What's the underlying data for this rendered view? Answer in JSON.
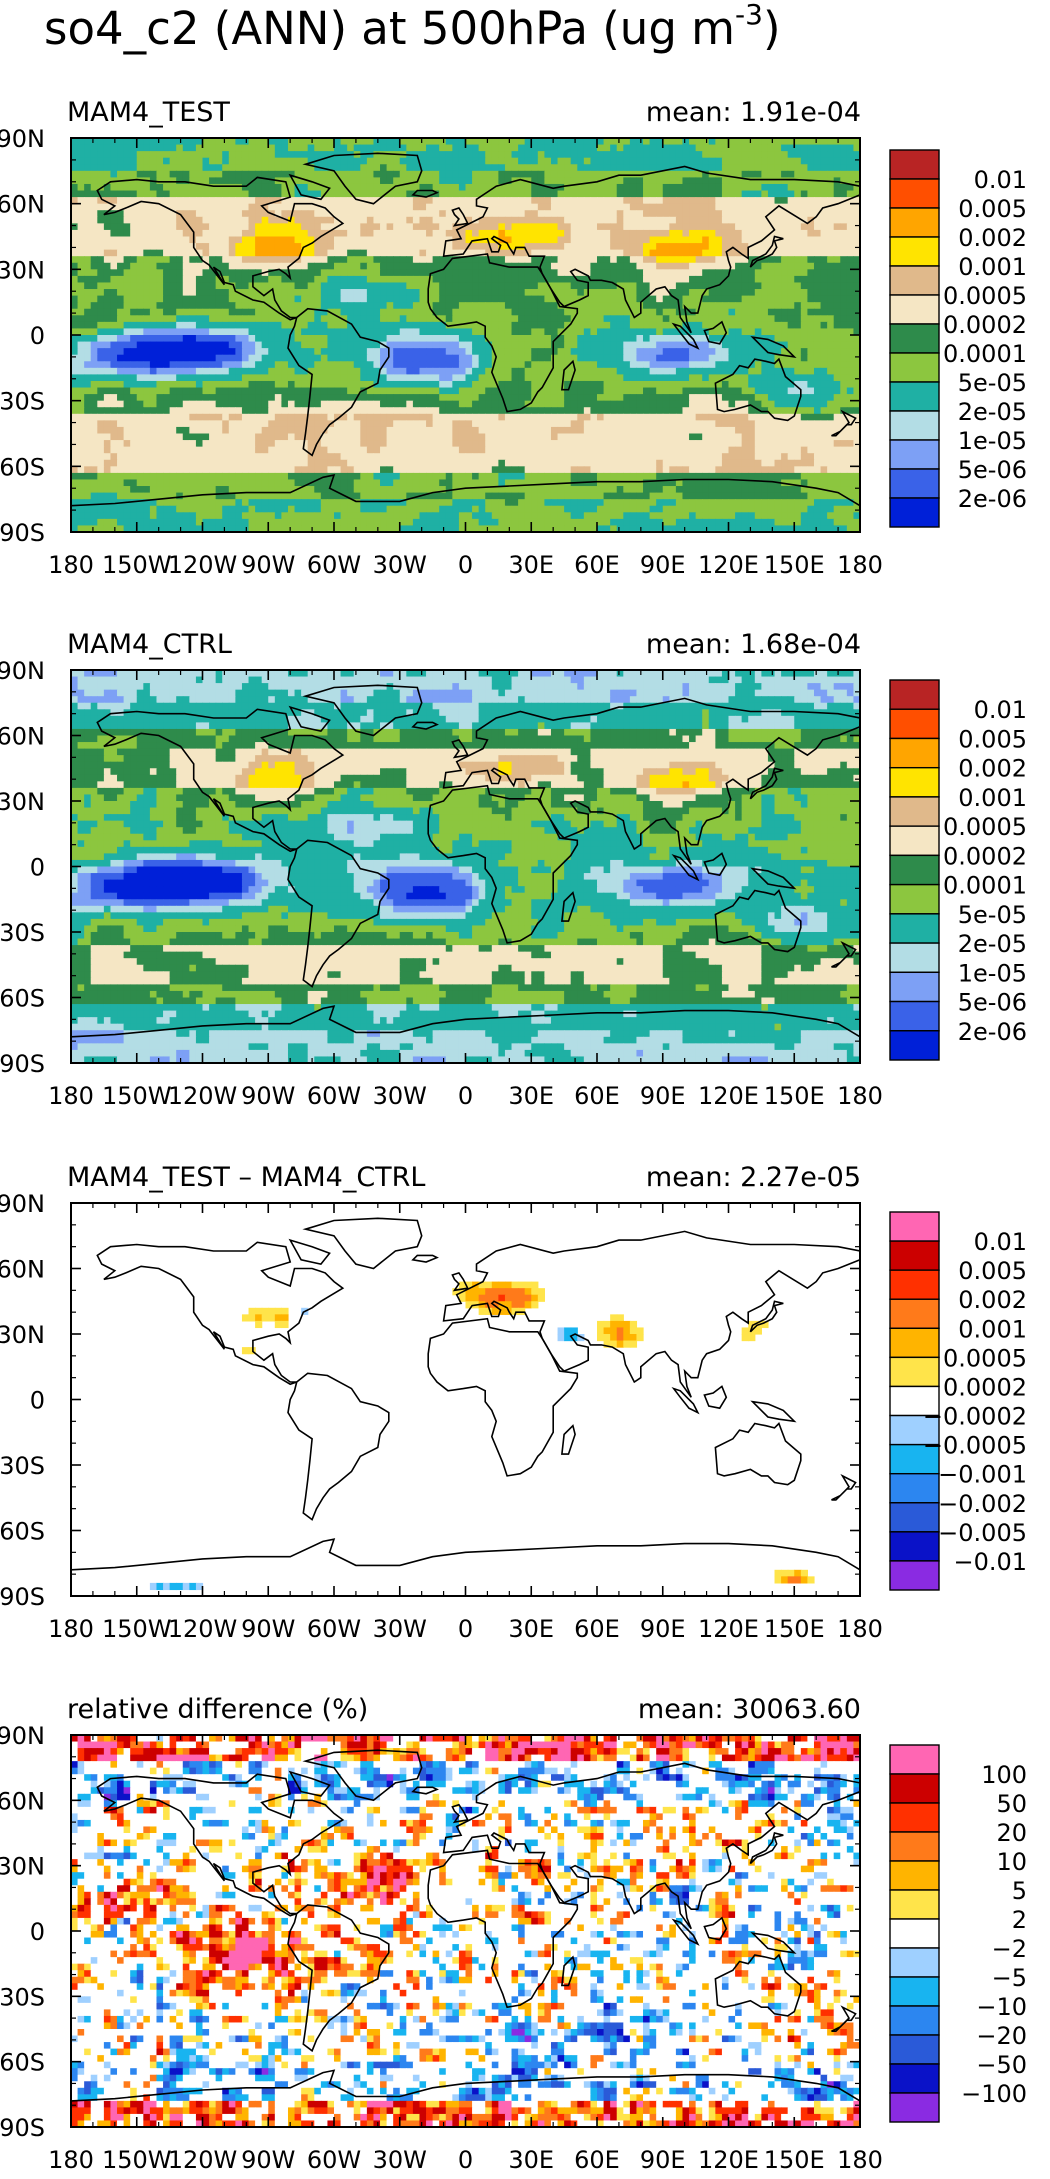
{
  "title_main": "so4_c2 (ANN) at 500hPa (ug m",
  "title_sup": "-3",
  "title_close": ")",
  "lat_ticks": [
    "90N",
    "60N",
    "30N",
    "0",
    "30S",
    "60S",
    "90S"
  ],
  "lon_ticks": [
    "180",
    "150W",
    "120W",
    "90W",
    "60W",
    "30W",
    "0",
    "30E",
    "60E",
    "90E",
    "120E",
    "150E",
    "180"
  ],
  "colors": {
    "ramp_abs": [
      "#0020d8",
      "#3a62e8",
      "#7da0f5",
      "#b3dde5",
      "#1fb0a4",
      "#8cc63f",
      "#2e8b4b",
      "#f5e6c4",
      "#e0b98b",
      "#ffe400",
      "#ffa500",
      "#ff4f00",
      "#b82424"
    ],
    "ramp_diff": [
      "#8a2be2",
      "#0a12c8",
      "#2a5ad8",
      "#2c86f0",
      "#18b4f0",
      "#9fd0ff",
      "#ffffff",
      "#ffe44a",
      "#ffb400",
      "#ff7a1a",
      "#ff3000",
      "#cc0000",
      "#ff66b3"
    ],
    "coast": "#000000",
    "land_blank": "#ffffff"
  },
  "chart_data": [
    {
      "type": "heatmap",
      "title": "MAM4_TEST",
      "mean_label": "mean: 1.91e-04",
      "xlim": [
        -180,
        180
      ],
      "ylim": [
        -90,
        90
      ],
      "colorbar_labels": [
        "0.01",
        "0.005",
        "0.002",
        "0.001",
        "0.0005",
        "0.0002",
        "0.0001",
        "5e-05",
        "2e-05",
        "1e-05",
        "5e-06",
        "2e-06"
      ],
      "contour_levels": [
        2e-06,
        5e-06,
        1e-05,
        2e-05,
        5e-05,
        0.0001,
        0.0002,
        0.0005,
        0.001,
        0.002,
        0.005,
        0.01
      ],
      "ramp": "ramp_abs",
      "field": "abs_test"
    },
    {
      "type": "heatmap",
      "title": "MAM4_CTRL",
      "mean_label": "mean: 1.68e-04",
      "xlim": [
        -180,
        180
      ],
      "ylim": [
        -90,
        90
      ],
      "colorbar_labels": [
        "0.01",
        "0.005",
        "0.002",
        "0.001",
        "0.0005",
        "0.0002",
        "0.0001",
        "5e-05",
        "2e-05",
        "1e-05",
        "5e-06",
        "2e-06"
      ],
      "contour_levels": [
        2e-06,
        5e-06,
        1e-05,
        2e-05,
        5e-05,
        0.0001,
        0.0002,
        0.0005,
        0.001,
        0.002,
        0.005,
        0.01
      ],
      "ramp": "ramp_abs",
      "field": "abs_ctrl"
    },
    {
      "type": "heatmap",
      "title": "MAM4_TEST – MAM4_CTRL",
      "mean_label": "mean: 2.27e-05",
      "xlim": [
        -180,
        180
      ],
      "ylim": [
        -90,
        90
      ],
      "colorbar_labels": [
        "0.01",
        "0.005",
        "0.002",
        "0.001",
        "0.0005",
        "0.0002",
        "−0.0002",
        "−0.0005",
        "−0.001",
        "−0.002",
        "−0.005",
        "−0.01"
      ],
      "contour_levels": [
        -0.01,
        -0.005,
        -0.002,
        -0.001,
        -0.0005,
        -0.0002,
        0.0002,
        0.0005,
        0.001,
        0.002,
        0.005,
        0.01
      ],
      "ramp": "ramp_diff",
      "field": "diff"
    },
    {
      "type": "heatmap",
      "title": "relative difference (%)",
      "mean_label": "mean: 30063.60",
      "xlim": [
        -180,
        180
      ],
      "ylim": [
        -90,
        90
      ],
      "colorbar_labels": [
        "100",
        "50",
        "20",
        "10",
        "5",
        "2",
        "−2",
        "−5",
        "−10",
        "−20",
        "−50",
        "−100"
      ],
      "contour_levels": [
        -100,
        -50,
        -20,
        -10,
        -5,
        -2,
        2,
        5,
        10,
        20,
        50,
        100
      ],
      "ramp": "ramp_diff",
      "field": "rel"
    }
  ],
  "coastlines": {
    "north_america": [
      [
        -168,
        66
      ],
      [
        -162,
        70
      ],
      [
        -150,
        71
      ],
      [
        -140,
        70
      ],
      [
        -128,
        70
      ],
      [
        -115,
        68
      ],
      [
        -100,
        68
      ],
      [
        -95,
        72
      ],
      [
        -82,
        70
      ],
      [
        -80,
        63
      ],
      [
        -93,
        59
      ],
      [
        -90,
        56
      ],
      [
        -80,
        52
      ],
      [
        -78,
        60
      ],
      [
        -70,
        60
      ],
      [
        -64,
        58
      ],
      [
        -60,
        54
      ],
      [
        -56,
        51
      ],
      [
        -66,
        45
      ],
      [
        -70,
        42
      ],
      [
        -74,
        40
      ],
      [
        -76,
        35
      ],
      [
        -81,
        31
      ],
      [
        -80,
        26
      ],
      [
        -82,
        28
      ],
      [
        -85,
        30
      ],
      [
        -90,
        29
      ],
      [
        -97,
        27
      ],
      [
        -97,
        22
      ],
      [
        -92,
        18
      ],
      [
        -88,
        21
      ],
      [
        -87,
        16
      ],
      [
        -84,
        11
      ],
      [
        -80,
        8
      ],
      [
        -77,
        8
      ],
      [
        -80,
        7
      ],
      [
        -85,
        10
      ],
      [
        -92,
        15
      ],
      [
        -97,
        16
      ],
      [
        -105,
        20
      ],
      [
        -106,
        23
      ],
      [
        -110,
        24
      ],
      [
        -112,
        29
      ],
      [
        -115,
        31
      ],
      [
        -110,
        23
      ],
      [
        -117,
        32
      ],
      [
        -120,
        34
      ],
      [
        -124,
        40
      ],
      [
        -124,
        47
      ],
      [
        -130,
        55
      ],
      [
        -140,
        60
      ],
      [
        -148,
        61
      ],
      [
        -155,
        58
      ],
      [
        -160,
        56
      ],
      [
        -165,
        55
      ],
      [
        -160,
        59
      ],
      [
        -166,
        62
      ],
      [
        -168,
        66
      ]
    ],
    "greenland": [
      [
        -73,
        78
      ],
      [
        -60,
        82
      ],
      [
        -40,
        83
      ],
      [
        -22,
        82
      ],
      [
        -20,
        75
      ],
      [
        -22,
        70
      ],
      [
        -32,
        68
      ],
      [
        -42,
        60
      ],
      [
        -50,
        62
      ],
      [
        -55,
        68
      ],
      [
        -60,
        75
      ],
      [
        -73,
        78
      ]
    ],
    "south_america": [
      [
        -77,
        8
      ],
      [
        -72,
        12
      ],
      [
        -63,
        11
      ],
      [
        -52,
        5
      ],
      [
        -48,
        -1
      ],
      [
        -40,
        -3
      ],
      [
        -35,
        -6
      ],
      [
        -35,
        -10
      ],
      [
        -39,
        -16
      ],
      [
        -40,
        -22
      ],
      [
        -48,
        -26
      ],
      [
        -52,
        -33
      ],
      [
        -58,
        -38
      ],
      [
        -62,
        -41
      ],
      [
        -65,
        -45
      ],
      [
        -68,
        -50
      ],
      [
        -70,
        -55
      ],
      [
        -74,
        -52
      ],
      [
        -73,
        -45
      ],
      [
        -72,
        -37
      ],
      [
        -71,
        -28
      ],
      [
        -70,
        -18
      ],
      [
        -76,
        -14
      ],
      [
        -81,
        -6
      ],
      [
        -80,
        0
      ],
      [
        -78,
        4
      ],
      [
        -77,
        8
      ]
    ],
    "europe_asia": [
      [
        -10,
        36
      ],
      [
        -9,
        43
      ],
      [
        -2,
        44
      ],
      [
        -4,
        48
      ],
      [
        2,
        51
      ],
      [
        8,
        54
      ],
      [
        10,
        58
      ],
      [
        5,
        59
      ],
      [
        5,
        62
      ],
      [
        14,
        68
      ],
      [
        25,
        71
      ],
      [
        40,
        67
      ],
      [
        45,
        68
      ],
      [
        60,
        70
      ],
      [
        70,
        73
      ],
      [
        80,
        73
      ],
      [
        100,
        77
      ],
      [
        110,
        74
      ],
      [
        130,
        71
      ],
      [
        150,
        71
      ],
      [
        170,
        70
      ],
      [
        180,
        68
      ],
      [
        180,
        64
      ],
      [
        170,
        60
      ],
      [
        163,
        58
      ],
      [
        160,
        54
      ],
      [
        156,
        51
      ],
      [
        143,
        59
      ],
      [
        137,
        54
      ],
      [
        141,
        48
      ],
      [
        135,
        43
      ],
      [
        129,
        40
      ],
      [
        129,
        35
      ],
      [
        126,
        37
      ],
      [
        122,
        40
      ],
      [
        119,
        38
      ],
      [
        120,
        34
      ],
      [
        121,
        31
      ],
      [
        120,
        27
      ],
      [
        116,
        23
      ],
      [
        110,
        21
      ],
      [
        108,
        18
      ],
      [
        106,
        10
      ],
      [
        103,
        10
      ],
      [
        100,
        13
      ],
      [
        101,
        6
      ],
      [
        103,
        1
      ],
      [
        98,
        8
      ],
      [
        97,
        16
      ],
      [
        94,
        18
      ],
      [
        91,
        22
      ],
      [
        87,
        21
      ],
      [
        80,
        15
      ],
      [
        80,
        10
      ],
      [
        77,
        8
      ],
      [
        73,
        16
      ],
      [
        72,
        21
      ],
      [
        67,
        24
      ],
      [
        62,
        25
      ],
      [
        57,
        25
      ],
      [
        56,
        27
      ],
      [
        50,
        30
      ],
      [
        48,
        29
      ],
      [
        51,
        25
      ],
      [
        56,
        24
      ],
      [
        56,
        18
      ],
      [
        52,
        16
      ],
      [
        45,
        13
      ],
      [
        43,
        15
      ],
      [
        39,
        21
      ],
      [
        35,
        28
      ],
      [
        34,
        31
      ],
      [
        36,
        36
      ],
      [
        29,
        36
      ],
      [
        27,
        40
      ],
      [
        23,
        40
      ],
      [
        22,
        37
      ],
      [
        20,
        40
      ],
      [
        19,
        42
      ],
      [
        13,
        45
      ],
      [
        12,
        44
      ],
      [
        16,
        41
      ],
      [
        15,
        38
      ],
      [
        12,
        38
      ],
      [
        10,
        44
      ],
      [
        3,
        43
      ],
      [
        -1,
        37
      ],
      [
        -10,
        36
      ]
    ],
    "africa": [
      [
        -17,
        21
      ],
      [
        -16,
        28
      ],
      [
        -10,
        30
      ],
      [
        -6,
        35
      ],
      [
        10,
        37
      ],
      [
        11,
        33
      ],
      [
        20,
        31
      ],
      [
        30,
        31
      ],
      [
        33,
        31
      ],
      [
        35,
        28
      ],
      [
        39,
        21
      ],
      [
        43,
        13
      ],
      [
        51,
        12
      ],
      [
        51,
        10
      ],
      [
        48,
        5
      ],
      [
        40,
        -3
      ],
      [
        40,
        -10
      ],
      [
        40,
        -15
      ],
      [
        35,
        -24
      ],
      [
        33,
        -26
      ],
      [
        30,
        -31
      ],
      [
        25,
        -34
      ],
      [
        19,
        -35
      ],
      [
        17,
        -29
      ],
      [
        12,
        -17
      ],
      [
        14,
        -10
      ],
      [
        12,
        -5
      ],
      [
        9,
        -1
      ],
      [
        9,
        4
      ],
      [
        5,
        6
      ],
      [
        -1,
        5
      ],
      [
        -8,
        4
      ],
      [
        -13,
        8
      ],
      [
        -16,
        12
      ],
      [
        -17,
        15
      ],
      [
        -17,
        21
      ]
    ],
    "madagascar": [
      [
        44,
        -25
      ],
      [
        47,
        -25
      ],
      [
        50,
        -16
      ],
      [
        49,
        -12
      ],
      [
        45,
        -16
      ],
      [
        44,
        -25
      ]
    ],
    "australia": [
      [
        114,
        -22
      ],
      [
        115,
        -34
      ],
      [
        118,
        -35
      ],
      [
        123,
        -34
      ],
      [
        130,
        -32
      ],
      [
        135,
        -35
      ],
      [
        138,
        -35
      ],
      [
        141,
        -38
      ],
      [
        147,
        -39
      ],
      [
        150,
        -37
      ],
      [
        153,
        -28
      ],
      [
        153,
        -25
      ],
      [
        146,
        -19
      ],
      [
        143,
        -11
      ],
      [
        141,
        -13
      ],
      [
        137,
        -12
      ],
      [
        132,
        -11
      ],
      [
        129,
        -15
      ],
      [
        125,
        -14
      ],
      [
        122,
        -18
      ],
      [
        114,
        -22
      ]
    ],
    "antarctica": [
      [
        -180,
        -78
      ],
      [
        -160,
        -77
      ],
      [
        -140,
        -75
      ],
      [
        -120,
        -73
      ],
      [
        -100,
        -72
      ],
      [
        -80,
        -72
      ],
      [
        -65,
        -65
      ],
      [
        -60,
        -64
      ],
      [
        -62,
        -70
      ],
      [
        -50,
        -76
      ],
      [
        -30,
        -76
      ],
      [
        -15,
        -72
      ],
      [
        0,
        -70
      ],
      [
        20,
        -69
      ],
      [
        40,
        -68
      ],
      [
        60,
        -67
      ],
      [
        80,
        -67
      ],
      [
        100,
        -66
      ],
      [
        120,
        -66
      ],
      [
        140,
        -67
      ],
      [
        160,
        -70
      ],
      [
        170,
        -72
      ],
      [
        180,
        -78
      ]
    ],
    "borneo": [
      [
        109,
        2
      ],
      [
        111,
        -3
      ],
      [
        116,
        -4
      ],
      [
        119,
        1
      ],
      [
        117,
        6
      ],
      [
        113,
        3
      ],
      [
        109,
        2
      ]
    ],
    "sumatra": [
      [
        95,
        5
      ],
      [
        98,
        4
      ],
      [
        104,
        -2
      ],
      [
        106,
        -6
      ],
      [
        102,
        -4
      ],
      [
        98,
        1
      ],
      [
        95,
        5
      ]
    ],
    "new_guinea": [
      [
        131,
        -1
      ],
      [
        138,
        -2
      ],
      [
        145,
        -5
      ],
      [
        150,
        -10
      ],
      [
        143,
        -9
      ],
      [
        138,
        -8
      ],
      [
        131,
        -1
      ]
    ],
    "japan": [
      [
        130,
        31
      ],
      [
        133,
        34
      ],
      [
        136,
        35
      ],
      [
        140,
        37
      ],
      [
        142,
        40
      ],
      [
        141,
        43
      ],
      [
        145,
        44
      ],
      [
        141,
        45
      ],
      [
        140,
        41
      ],
      [
        137,
        37
      ],
      [
        131,
        34
      ],
      [
        130,
        31
      ]
    ],
    "britain": [
      [
        -5,
        50
      ],
      [
        1,
        51
      ],
      [
        -1,
        55
      ],
      [
        -3,
        58
      ],
      [
        -6,
        57
      ],
      [
        -5,
        55
      ],
      [
        -3,
        53
      ],
      [
        -5,
        50
      ]
    ],
    "iceland": [
      [
        -24,
        64
      ],
      [
        -22,
        66
      ],
      [
        -15,
        66
      ],
      [
        -13,
        65
      ],
      [
        -18,
        63
      ],
      [
        -24,
        64
      ]
    ],
    "new_zealand": [
      [
        172,
        -35
      ],
      [
        178,
        -38
      ],
      [
        176,
        -41
      ],
      [
        174,
        -41
      ],
      [
        171,
        -44
      ],
      [
        167,
        -46
      ],
      [
        169,
        -46
      ],
      [
        173,
        -42
      ],
      [
        175,
        -40
      ],
      [
        172,
        -35
      ]
    ],
    "baffin": [
      [
        -80,
        73
      ],
      [
        -70,
        70
      ],
      [
        -62,
        67
      ],
      [
        -66,
        62
      ],
      [
        -75,
        64
      ],
      [
        -80,
        73
      ]
    ]
  }
}
